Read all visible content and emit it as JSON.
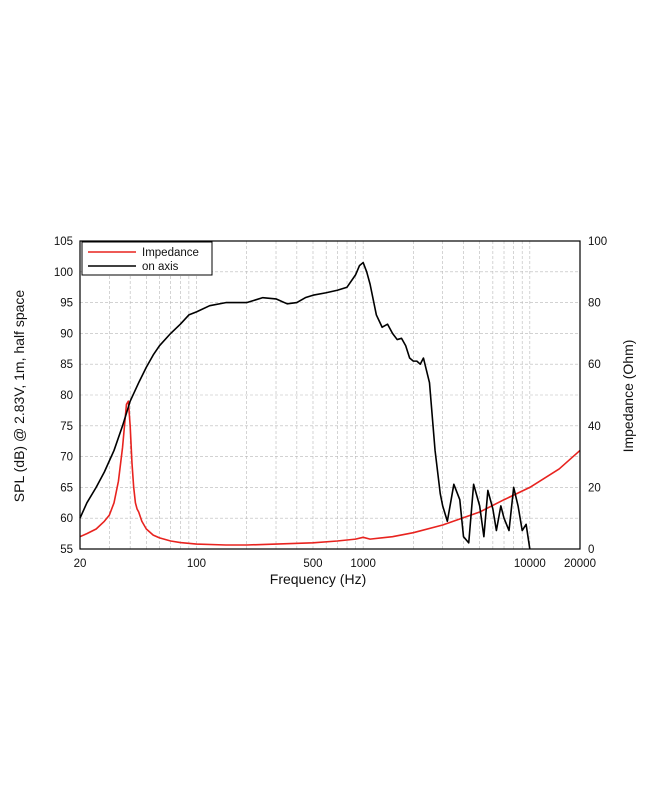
{
  "chart_data": {
    "type": "line",
    "title": "",
    "xlabel": "Frequency (Hz)",
    "ylabel": "SPL (dB) @ 2.83V, 1m, half space",
    "y2label": "Impedance (Ohm)",
    "x_scale": "log",
    "xlim": [
      20,
      20000
    ],
    "ylim": [
      55,
      105
    ],
    "y2lim": [
      0,
      100
    ],
    "grid": true,
    "legend_position": "top-left",
    "x_ticks": [
      "20",
      "100",
      "500",
      "1000",
      "10000",
      "20000"
    ],
    "y_ticks": [
      "55",
      "60",
      "65",
      "70",
      "75",
      "80",
      "85",
      "90",
      "95",
      "100",
      "105"
    ],
    "y2_ticks": [
      "0",
      "20",
      "40",
      "60",
      "80",
      "100"
    ],
    "colors": {
      "impedance": "#e8231f",
      "on_axis": "#000000",
      "grid": "#b8b8b8"
    },
    "series": [
      {
        "name": "Impedance",
        "axis": "right",
        "color": "#e8231f",
        "x": [
          20,
          22,
          25,
          28,
          30,
          32,
          34,
          36,
          38,
          39,
          40,
          41,
          42,
          43,
          44,
          45,
          47,
          50,
          55,
          60,
          70,
          80,
          100,
          150,
          200,
          300,
          500,
          700,
          900,
          1000,
          1100,
          1500,
          2000,
          3000,
          5000,
          7000,
          10000,
          15000,
          20000
        ],
        "y": [
          4,
          5,
          6.5,
          9,
          11,
          15,
          22,
          33,
          47,
          48,
          40,
          28,
          20,
          15,
          13,
          12,
          9,
          6.5,
          4.5,
          3.6,
          2.6,
          2.1,
          1.6,
          1.3,
          1.3,
          1.6,
          2.0,
          2.6,
          3.2,
          3.8,
          3.2,
          4.0,
          5.3,
          7.8,
          12,
          16,
          20,
          26,
          32
        ]
      },
      {
        "name": "on axis",
        "axis": "left",
        "color": "#000000",
        "x": [
          20,
          22,
          25,
          28,
          32,
          36,
          40,
          45,
          50,
          55,
          60,
          70,
          80,
          90,
          100,
          120,
          150,
          200,
          250,
          300,
          350,
          400,
          450,
          500,
          600,
          700,
          800,
          900,
          950,
          1000,
          1050,
          1100,
          1200,
          1300,
          1400,
          1500,
          1600,
          1700,
          1800,
          1900,
          2000,
          2100,
          2200,
          2300,
          2500,
          2700,
          2900,
          3000,
          3200,
          3500,
          3800,
          4000,
          4300,
          4600,
          5000,
          5300,
          5600,
          6000,
          6300,
          6700,
          7000,
          7500,
          8000,
          8500,
          9000,
          9500,
          10000
        ],
        "y": [
          60,
          62.5,
          65,
          67.5,
          71,
          75,
          79,
          82,
          84.5,
          86.5,
          88,
          90,
          91.5,
          93,
          93.5,
          94.5,
          95,
          95,
          95.8,
          95.6,
          94.8,
          95,
          95.8,
          96.2,
          96.6,
          97,
          97.5,
          99.5,
          101,
          101.5,
          100,
          98,
          93,
          91,
          91.5,
          90,
          89,
          89.2,
          88,
          86,
          85.5,
          85.5,
          85,
          86,
          82,
          71,
          64,
          62,
          59.5,
          65.5,
          63,
          57,
          56,
          65.5,
          62,
          57,
          64.5,
          61.5,
          58,
          62,
          60,
          58,
          65,
          62,
          58,
          59,
          55
        ]
      }
    ]
  }
}
